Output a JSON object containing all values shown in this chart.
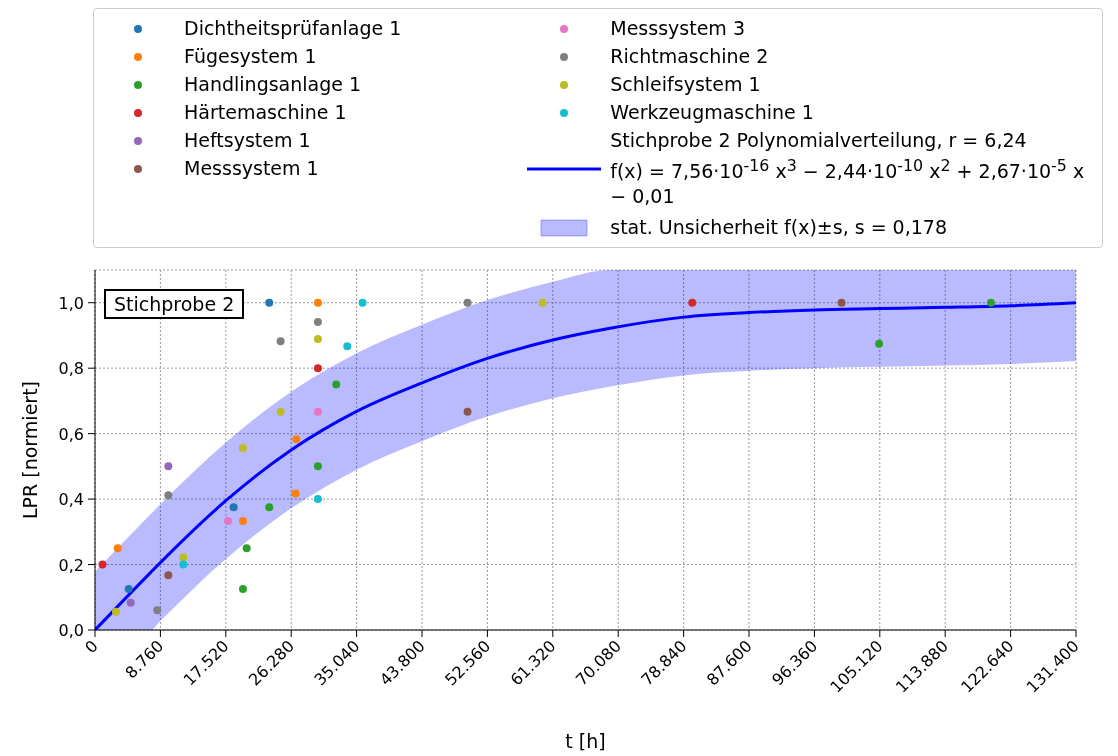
{
  "chart_data": {
    "type": "scatter",
    "xlabel": "t [h]",
    "ylabel": "LPR [normiert]",
    "xlim": [
      0,
      131400
    ],
    "xticks": [
      0,
      {
        "value": 8760,
        "label": "8.760"
      },
      {
        "value": 17520,
        "label": "17.520"
      },
      {
        "value": 26280,
        "label": "26.280"
      },
      {
        "value": 35040,
        "label": "35.040"
      },
      {
        "value": 43800,
        "label": "43.800"
      },
      {
        "value": 52560,
        "label": "52.560"
      },
      {
        "value": 61320,
        "label": "61.320"
      },
      {
        "value": 70080,
        "label": "70.080"
      },
      {
        "value": 78840,
        "label": "78.840"
      },
      {
        "value": 87600,
        "label": "87.600"
      },
      {
        "value": 96360,
        "label": "96.360"
      },
      {
        "value": 105120,
        "label": "105.120"
      },
      {
        "value": 113880,
        "label": "113.880"
      },
      {
        "value": 122640,
        "label": "122.640"
      },
      {
        "value": 131400,
        "label": "131.400"
      }
    ],
    "ylim": [
      0,
      1.1
    ],
    "yticks": [
      {
        "value": 0,
        "label": "0,0"
      },
      {
        "value": 0.2,
        "label": "0,2"
      },
      {
        "value": 0.4,
        "label": "0,4"
      },
      {
        "value": 0.6,
        "label": "0,6"
      },
      {
        "value": 0.8,
        "label": "0,8"
      },
      {
        "value": 1,
        "label": "1,0"
      }
    ],
    "grid": true,
    "legend": "top",
    "marker": "circle",
    "series": [
      {
        "name": "Dichtheitsprüfanlage 1",
        "color": "#1f77b4",
        "x": [
          4510,
          18570,
          23340
        ],
        "values": [
          0.125,
          0.375,
          1.0
        ]
      },
      {
        "name": "Fügesystem 1",
        "color": "#ff7f0e",
        "x": [
          3040,
          19820,
          26870,
          26960,
          29860
        ],
        "values": [
          0.25,
          0.333,
          0.417,
          0.583,
          1.0
        ]
      },
      {
        "name": "Handlingsanlage 1",
        "color": "#2ca02c",
        "x": [
          19820,
          20310,
          23340,
          29860,
          32310,
          105020,
          120000
        ],
        "values": [
          0.125,
          0.25,
          0.375,
          0.5,
          0.75,
          0.875,
          1.0
        ]
      },
      {
        "name": "Härtemaschine 1",
        "color": "#d62728",
        "x": [
          1000,
          29860,
          80000
        ],
        "values": [
          0.2,
          0.8,
          1.0
        ]
      },
      {
        "name": "Heftsystem 1",
        "color": "#9467bd",
        "x": [
          4780,
          9820
        ],
        "values": [
          0.083,
          0.5
        ]
      },
      {
        "name": "Messsystem 1",
        "color": "#8c564b",
        "x": [
          9820,
          49900,
          100000
        ],
        "values": [
          0.167,
          0.667,
          1.0
        ]
      },
      {
        "name": "Messsystem 3",
        "color": "#e377c2",
        "x": [
          17810,
          29860
        ],
        "values": [
          0.333,
          0.667
        ]
      },
      {
        "name": "Richtmaschine 2",
        "color": "#7f7f7f",
        "x": [
          8340,
          9820,
          24860,
          29860,
          49900
        ],
        "values": [
          0.06,
          0.412,
          0.882,
          0.941,
          1.0
        ]
      },
      {
        "name": "Schleifsystem 1",
        "color": "#bcbd22",
        "x": [
          2810,
          11830,
          19820,
          24860,
          29860,
          59950
        ],
        "values": [
          0.056,
          0.222,
          0.556,
          0.667,
          0.889,
          1.0
        ]
      },
      {
        "name": "Werkzeugmaschine 1",
        "color": "#17becf",
        "x": [
          11830,
          29860,
          33790,
          35840
        ],
        "values": [
          0.2,
          0.4,
          0.867,
          1.0
        ]
      },
      {
        "type": "line",
        "marker": "none",
        "line_style": "solid",
        "name": "Stichprobe 2 Polynomialverteilung, r = 6,24\nf(x) = 7,56·10$^{-16}$ x$^{3}$ − 2,44·10$^{-10}$ x$^{2}$ + 2,67·10$^{-5}$ x − 0,01",
        "color": "#0000ff",
        "x": [
          0,
          7500,
          8760,
          17520,
          26280,
          35040,
          43800,
          52560,
          61320,
          69000,
          78840,
          87600,
          96360,
          105120,
          113880,
          122640,
          131400
        ],
        "values": [
          0,
          0.177,
          0.206,
          0.395,
          0.55,
          0.668,
          0.755,
          0.83,
          0.886,
          0.922,
          0.956,
          0.97,
          0.978,
          0.982,
          0.986,
          0.991,
          1.0
        ],
        "lower": [
          0,
          0,
          0.028,
          0.217,
          0.372,
          0.49,
          0.577,
          0.652,
          0.708,
          0.744,
          0.778,
          0.792,
          0.8,
          0.804,
          0.808,
          0.813,
          0.822
        ],
        "upper": [
          0.178,
          0.355,
          0.384,
          0.573,
          0.728,
          0.846,
          0.933,
          1.008,
          1.064,
          1.1,
          1.1,
          1.1,
          1.1,
          1.1,
          1.1,
          1.1,
          1.1
        ]
      }
    ],
    "annotations": [
      "stat. Unsicherheit f(x)±s, s = 0,178",
      "Stichprobe 2"
    ]
  }
}
